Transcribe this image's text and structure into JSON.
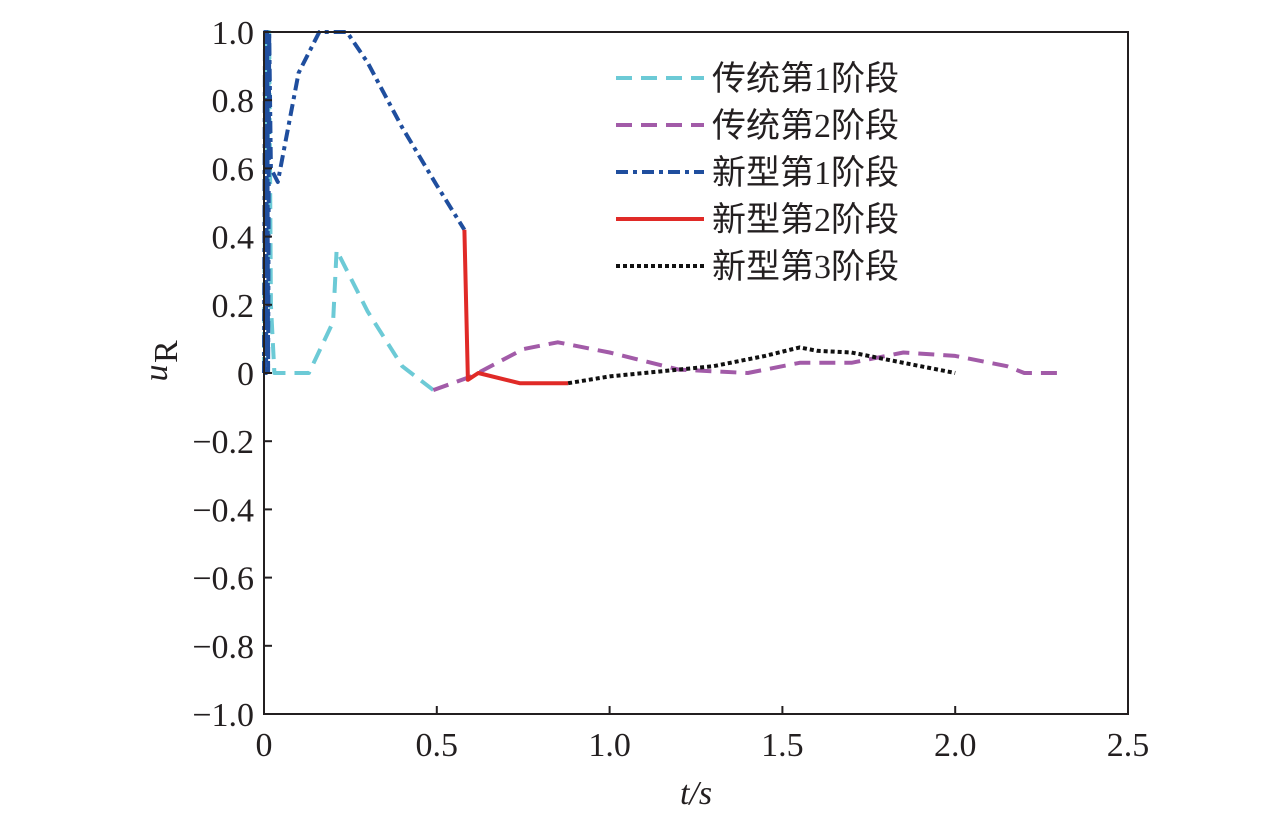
{
  "chart_data": {
    "type": "line",
    "xlabel": "t/s",
    "ylabel_main": "u",
    "ylabel_sub": "R",
    "xlim": [
      0,
      2.5
    ],
    "ylim": [
      -1.0,
      1.0
    ],
    "x_ticks": [
      "0",
      "0.5",
      "1.0",
      "1.5",
      "2.0",
      "2.5"
    ],
    "y_ticks": [
      "-1.0",
      "-0.8",
      "-0.6",
      "-0.4",
      "-0.2",
      "0",
      "0.2",
      "0.4",
      "0.6",
      "0.8",
      "1.0"
    ],
    "grid": false,
    "legend_position": "top-right",
    "series": [
      {
        "name": "传统第1阶段",
        "color": "#6ccad6",
        "style": "dashed",
        "points": [
          [
            0.0,
            0.0
          ],
          [
            0.005,
            1.0
          ],
          [
            0.01,
            0.6
          ],
          [
            0.015,
            1.0
          ],
          [
            0.02,
            0.2
          ],
          [
            0.03,
            0.0
          ],
          [
            0.13,
            0.0
          ],
          [
            0.2,
            0.15
          ],
          [
            0.21,
            0.36
          ],
          [
            0.3,
            0.18
          ],
          [
            0.4,
            0.02
          ],
          [
            0.49,
            -0.05
          ]
        ]
      },
      {
        "name": "传统第2阶段",
        "color": "#a25ba8",
        "style": "dashed",
        "points": [
          [
            0.49,
            -0.05
          ],
          [
            0.6,
            -0.01
          ],
          [
            0.75,
            0.07
          ],
          [
            0.85,
            0.09
          ],
          [
            1.0,
            0.06
          ],
          [
            1.2,
            0.01
          ],
          [
            1.4,
            0.0
          ],
          [
            1.55,
            0.03
          ],
          [
            1.7,
            0.03
          ],
          [
            1.85,
            0.06
          ],
          [
            2.0,
            0.05
          ],
          [
            2.15,
            0.02
          ],
          [
            2.2,
            0.0
          ],
          [
            2.3,
            0.0
          ]
        ]
      },
      {
        "name": "新型第1阶段",
        "color": "#1f4e9e",
        "style": "dashdot",
        "points": [
          [
            0.0,
            0.0
          ],
          [
            0.003,
            1.0
          ],
          [
            0.006,
            0.0
          ],
          [
            0.009,
            1.0
          ],
          [
            0.012,
            0.0
          ],
          [
            0.015,
            1.0
          ],
          [
            0.02,
            0.6
          ],
          [
            0.04,
            0.56
          ],
          [
            0.1,
            0.88
          ],
          [
            0.16,
            1.0
          ],
          [
            0.24,
            1.0
          ],
          [
            0.3,
            0.91
          ],
          [
            0.4,
            0.72
          ],
          [
            0.5,
            0.55
          ],
          [
            0.58,
            0.42
          ]
        ]
      },
      {
        "name": "新型第2阶段",
        "color": "#e02a27",
        "style": "solid",
        "points": [
          [
            0.58,
            0.42
          ],
          [
            0.59,
            -0.02
          ],
          [
            0.62,
            0.0
          ],
          [
            0.7,
            -0.02
          ],
          [
            0.74,
            -0.03
          ],
          [
            0.8,
            -0.03
          ],
          [
            0.88,
            -0.03
          ]
        ]
      },
      {
        "name": "新型第3阶段",
        "color": "#111111",
        "style": "dotted",
        "points": [
          [
            0.88,
            -0.03
          ],
          [
            1.0,
            -0.01
          ],
          [
            1.2,
            0.01
          ],
          [
            1.3,
            0.02
          ],
          [
            1.45,
            0.05
          ],
          [
            1.55,
            0.075
          ],
          [
            1.6,
            0.065
          ],
          [
            1.7,
            0.06
          ],
          [
            1.8,
            0.04
          ],
          [
            1.9,
            0.02
          ],
          [
            2.0,
            0.0
          ]
        ]
      }
    ]
  }
}
